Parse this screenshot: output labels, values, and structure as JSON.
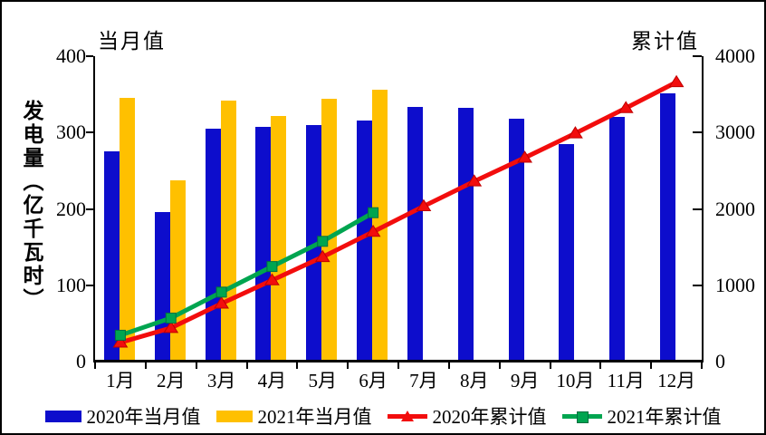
{
  "chart_data": {
    "type": "bar+line combo, dual axis",
    "categories": [
      "1月",
      "2月",
      "3月",
      "4月",
      "5月",
      "6月",
      "7月",
      "8月",
      "9月",
      "10月",
      "11月",
      "12月"
    ],
    "series": [
      {
        "name": "2020年当月值",
        "type": "bar",
        "axis": "left",
        "color": "#0d0dcc",
        "values": [
          275,
          196,
          305,
          307,
          310,
          316,
          334,
          332,
          318,
          285,
          321,
          351
        ]
      },
      {
        "name": "2021年当月值",
        "type": "bar",
        "axis": "left",
        "color": "#ffc000",
        "values": [
          346,
          238,
          342,
          322,
          344,
          356,
          null,
          null,
          null,
          null,
          null,
          null
        ]
      },
      {
        "name": "2020年累计值",
        "type": "line",
        "marker": "triangle",
        "axis": "right",
        "color": "#f20d0d",
        "edge": "#c00000",
        "values": [
          250,
          440,
          760,
          1065,
          1370,
          1700,
          2035,
          2360,
          2670,
          2990,
          3320,
          3660
        ]
      },
      {
        "name": "2021年累计值",
        "type": "line",
        "marker": "square",
        "axis": "right",
        "color": "#00a550",
        "edge": "#007040",
        "values": [
          345,
          570,
          910,
          1245,
          1575,
          1950,
          null,
          null,
          null,
          null,
          null,
          null
        ]
      }
    ],
    "left_axis": {
      "title": "当月值",
      "label": "发电量（亿千瓦时）",
      "ticks": [
        0,
        100,
        200,
        300,
        400
      ],
      "range": [
        0,
        400
      ]
    },
    "right_axis": {
      "title": "累计值",
      "ticks": [
        0,
        1000,
        2000,
        3000,
        4000
      ],
      "range": [
        0,
        4000
      ]
    },
    "grid": false,
    "legend_position": "bottom"
  }
}
